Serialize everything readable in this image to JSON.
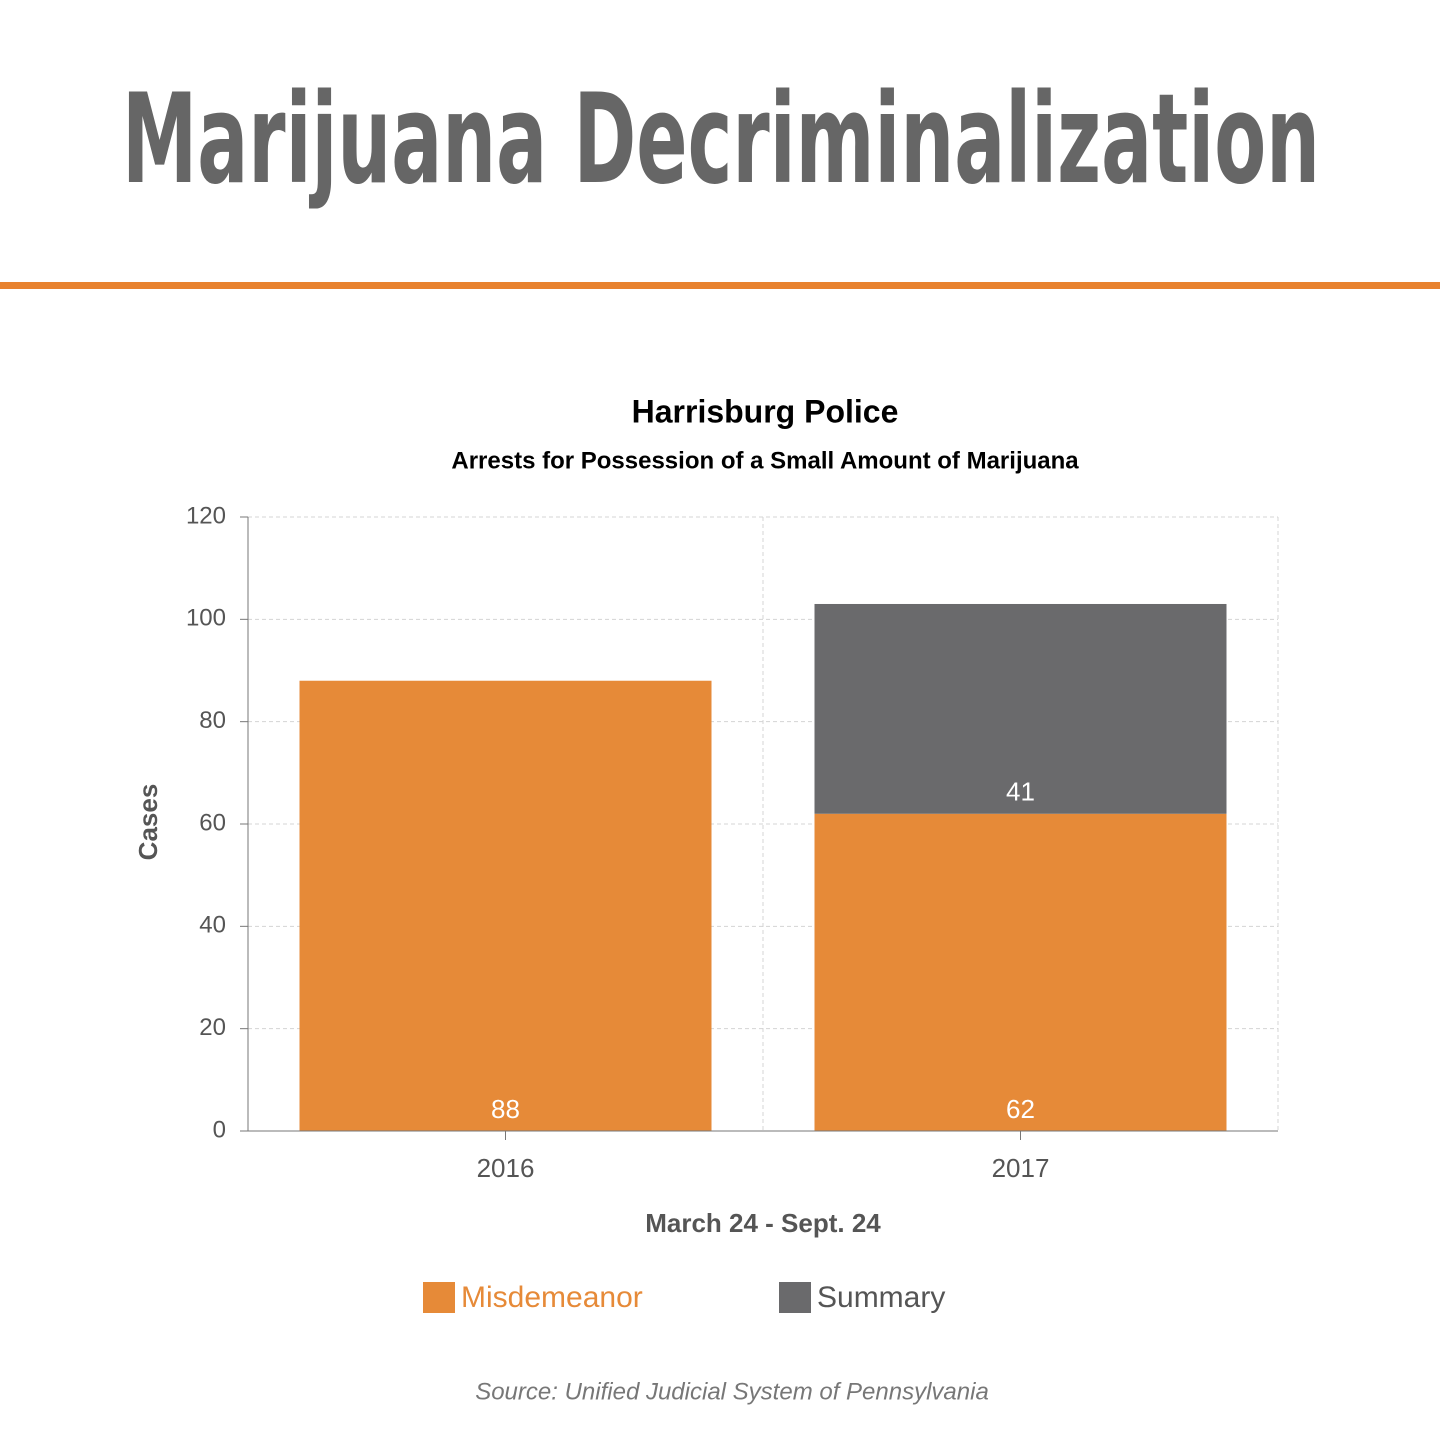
{
  "header": {
    "title": "Marijuana Decriminalization"
  },
  "chart_data": {
    "type": "stacked_bar",
    "title": "Harrisburg Police",
    "subtitle": "Arrests for Possession of a Small Amount of Marijuana",
    "y_label": "Cases",
    "x_label": "March 24 - Sept. 24",
    "categories": [
      "2016",
      "2017"
    ],
    "series": [
      {
        "name": "Misdemeanor",
        "color": "#e68a38",
        "values": [
          88,
          62
        ]
      },
      {
        "name": "Summary",
        "color": "#6a6a6c",
        "values": [
          null,
          41
        ]
      }
    ],
    "ylim": [
      0,
      120
    ],
    "yticks": [
      0,
      20,
      40,
      60,
      80,
      100,
      120
    ],
    "grid": true,
    "legend": "bottom",
    "source": "Source: Unified Judicial System of Pennsylvania"
  }
}
